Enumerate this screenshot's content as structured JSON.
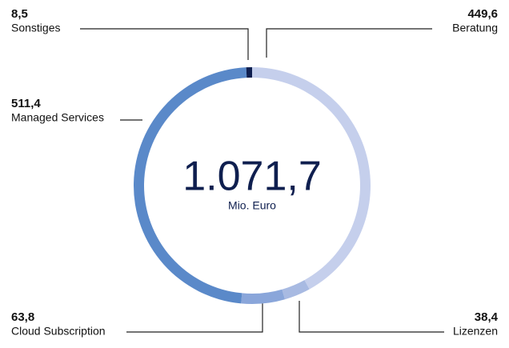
{
  "chart_data": {
    "type": "donut",
    "categories": [
      "Beratung",
      "Lizenzen",
      "Cloud Subscription",
      "Managed Services",
      "Sonstiges"
    ],
    "values": [
      449.6,
      38.4,
      63.8,
      511.4,
      8.5
    ],
    "value_labels": [
      "449,6",
      "38,4",
      "63,8",
      "511,4",
      "8,5"
    ],
    "colors": [
      "#c5cfec",
      "#a8bae2",
      "#8aa6da",
      "#5a89c9",
      "#0f1f4f"
    ],
    "total": {
      "value": 1071.7,
      "label": "1.071,7"
    },
    "unit": "Mio. Euro"
  }
}
